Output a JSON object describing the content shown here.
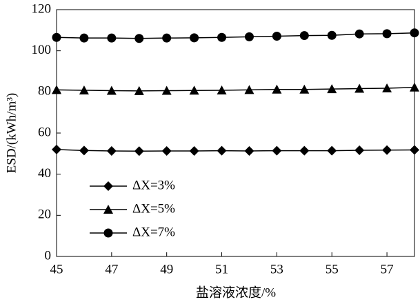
{
  "chart_data": {
    "type": "line",
    "xlabel": "盐溶液浓度/%",
    "ylabel": "ESD/(kWh/m³)",
    "x": [
      45,
      46,
      47,
      48,
      49,
      50,
      51,
      52,
      53,
      54,
      55,
      56,
      57,
      58
    ],
    "series": [
      {
        "name": "ΔX=3%",
        "color": "#000000",
        "marker": "diamond",
        "values": [
          52,
          51.5,
          51.3,
          51.2,
          51.3,
          51.3,
          51.4,
          51.3,
          51.4,
          51.4,
          51.4,
          51.6,
          51.7,
          51.8
        ]
      },
      {
        "name": "ΔX=5%",
        "color": "#000000",
        "marker": "triangle",
        "values": [
          81,
          80.8,
          80.6,
          80.5,
          80.6,
          80.7,
          80.8,
          81,
          81.2,
          81.2,
          81.4,
          81.6,
          81.8,
          82.2
        ]
      },
      {
        "name": "ΔX=7%",
        "color": "#000000",
        "marker": "circle",
        "values": [
          106.5,
          106.2,
          106.2,
          106,
          106.2,
          106.3,
          106.5,
          106.8,
          107.1,
          107.4,
          107.5,
          108.2,
          108.3,
          108.7
        ]
      }
    ],
    "xlim": [
      45,
      58
    ],
    "xticks": [
      45,
      47,
      49,
      51,
      53,
      55,
      57
    ],
    "ylim": [
      0,
      120
    ],
    "yticks": [
      0,
      20,
      40,
      60,
      80,
      100,
      120
    ],
    "legend": "lower-left"
  }
}
